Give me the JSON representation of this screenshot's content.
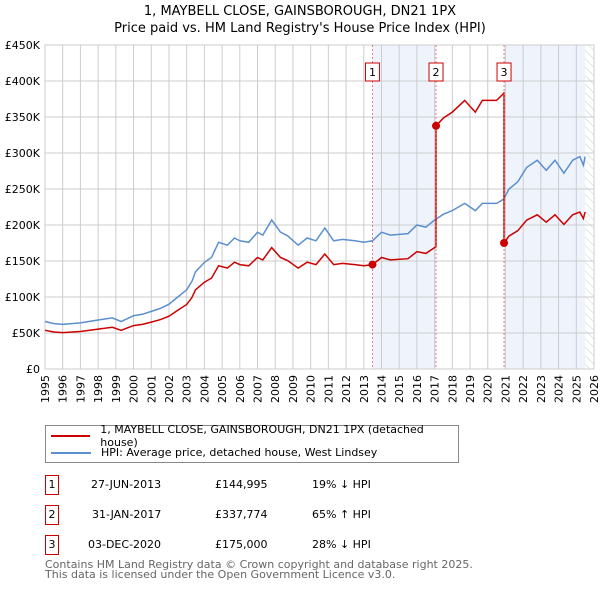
{
  "title": "1, MAYBELL CLOSE, GAINSBOROUGH, DN21 1PX",
  "subtitle": "Price paid vs. HM Land Registry's House Price Index (HPI)",
  "chart_data": {
    "type": "line",
    "xlim": [
      1995,
      2026
    ],
    "ylim": [
      0,
      450000
    ],
    "x_ticks": [
      "1995",
      "1996",
      "1997",
      "1998",
      "1999",
      "2000",
      "2001",
      "2002",
      "2003",
      "2004",
      "2005",
      "2006",
      "2007",
      "2008",
      "2009",
      "2010",
      "2011",
      "2012",
      "2013",
      "2014",
      "2015",
      "2016",
      "2017",
      "2018",
      "2019",
      "2020",
      "2021",
      "2022",
      "2023",
      "2024",
      "2025",
      "2026"
    ],
    "y_ticks": [
      {
        "v": 0,
        "label": "£0"
      },
      {
        "v": 50000,
        "label": "£50K"
      },
      {
        "v": 100000,
        "label": "£100K"
      },
      {
        "v": 150000,
        "label": "£150K"
      },
      {
        "v": 200000,
        "label": "£200K"
      },
      {
        "v": 250000,
        "label": "£250K"
      },
      {
        "v": 300000,
        "label": "£300K"
      },
      {
        "v": 350000,
        "label": "£350K"
      },
      {
        "v": 400000,
        "label": "£400K"
      },
      {
        "v": 450000,
        "label": "£450K"
      }
    ],
    "grid": true,
    "hpi_series": {
      "name": "HPI: Average price, detached house, West Lindsey",
      "color": "#5b8fd0",
      "x": [
        1995,
        1995.5,
        1996,
        1997,
        1998,
        1998.8,
        1999.3,
        2000,
        2000.5,
        2001,
        2001.5,
        2002,
        2002.5,
        2003,
        2003.3,
        2003.5,
        2004,
        2004.4,
        2004.8,
        2005.3,
        2005.7,
        2006,
        2006.5,
        2007,
        2007.3,
        2007.8,
        2008.3,
        2008.7,
        2009.3,
        2009.8,
        2010.3,
        2010.8,
        2011.3,
        2011.8,
        2012.5,
        2013,
        2013.5,
        2014,
        2014.5,
        2015.5,
        2016,
        2016.5,
        2017,
        2017.5,
        2018,
        2018.7,
        2019.3,
        2019.7,
        2020.5,
        2020.9,
        2021.2,
        2021.7,
        2022.2,
        2022.8,
        2023.3,
        2023.8,
        2024.3,
        2024.8,
        2025.2,
        2025.4,
        2025.5
      ],
      "y": [
        66,
        63,
        62,
        64,
        68,
        71,
        66,
        74,
        76,
        80,
        84,
        90,
        100,
        110,
        122,
        135,
        148,
        155,
        176,
        172,
        182,
        178,
        176,
        190,
        186,
        207,
        190,
        185,
        172,
        182,
        178,
        196,
        178,
        180,
        178,
        176,
        178,
        190,
        186,
        188,
        200,
        197,
        207,
        215,
        220,
        230,
        220,
        230,
        230,
        236,
        250,
        260,
        280,
        290,
        276,
        290,
        272,
        290,
        295,
        283,
        295
      ]
    },
    "price_series": {
      "name": "1, MAYBELL CLOSE, GAINSBOROUGH, DN21 1PX (detached house)",
      "color": "#cc0000",
      "note": "indexed from HPI at each sale"
    },
    "sales": [
      {
        "id": "1",
        "x": 2013.49,
        "date": "27-JUN-2013",
        "price": "£144,995",
        "value": 144995,
        "hpi": "19% ↓ HPI"
      },
      {
        "id": "2",
        "x": 2017.08,
        "date": "31-JAN-2017",
        "price": "£337,774",
        "value": 337774,
        "hpi": "65% ↑ HPI"
      },
      {
        "id": "3",
        "x": 2020.92,
        "date": "03-DEC-2020",
        "price": "£175,000",
        "value": 175000,
        "hpi": "28% ↓ HPI"
      }
    ],
    "shaded_ranges": [
      [
        2013.49,
        2017.08
      ],
      [
        2020.92,
        2025.5
      ]
    ],
    "hatched_from": 2025.5
  },
  "footer": [
    "Contains HM Land Registry data © Crown copyright and database right 2025.",
    "This data is licensed under the Open Government Licence v3.0."
  ]
}
